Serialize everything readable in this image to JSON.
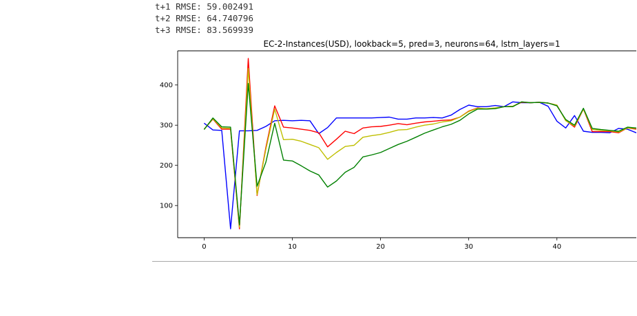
{
  "output_lines": [
    "t+1 RMSE: 59.002491",
    "t+2 RMSE: 64.740796",
    "t+3 RMSE: 83.569939"
  ],
  "chart_data": {
    "type": "line",
    "title": "EC-2-Instances(USD), lookback=5, pred=3, neurons=64, lstm_layers=1",
    "xlabel": "",
    "ylabel": "",
    "xlim": [
      -3,
      49
    ],
    "ylim": [
      20,
      485
    ],
    "xticks": [
      0,
      10,
      20,
      30,
      40
    ],
    "yticks": [
      100,
      200,
      300,
      400
    ],
    "grid": false,
    "legend": "none",
    "series": [
      {
        "color": "#0000ff",
        "x": [
          0,
          1,
          2,
          3,
          4,
          5,
          6,
          7,
          8,
          9,
          10,
          11,
          12,
          13,
          14,
          15,
          16,
          17,
          18,
          19,
          20,
          21,
          22,
          23,
          24,
          25,
          26,
          27,
          28,
          29,
          30,
          31,
          32,
          33,
          34,
          35,
          36,
          37,
          38,
          39,
          40,
          41,
          42,
          43,
          44,
          45,
          46,
          47,
          48,
          49
        ],
        "y": [
          305,
          288,
          287,
          42,
          286,
          286,
          287,
          297,
          311,
          312,
          311,
          312,
          311,
          279,
          294,
          318,
          318,
          318,
          318,
          318,
          319,
          320,
          315,
          315,
          318,
          318,
          319,
          318,
          325,
          339,
          350,
          346,
          346,
          349,
          346,
          358,
          356,
          356,
          357,
          347,
          310,
          293,
          324,
          285,
          282,
          282,
          281,
          292,
          290,
          281
        ]
      },
      {
        "color": "#ff0000",
        "x": [
          0,
          1,
          2,
          3,
          4,
          5,
          6,
          7,
          8,
          9,
          10,
          11,
          12,
          13,
          14,
          15,
          16,
          17,
          18,
          19,
          20,
          21,
          22,
          23,
          24,
          25,
          26,
          27,
          28,
          29,
          30,
          31,
          32,
          33,
          34,
          35,
          36,
          37,
          38,
          39,
          40,
          41,
          42,
          43,
          44,
          45,
          46,
          47,
          48,
          49
        ],
        "y": [
          290,
          315,
          290,
          290,
          42,
          466,
          125,
          245,
          348,
          295,
          293,
          290,
          287,
          281,
          246,
          265,
          285,
          279,
          293,
          296,
          297,
          300,
          304,
          301,
          305,
          308,
          310,
          312,
          313,
          320,
          335,
          343,
          340,
          342,
          346,
          347,
          357,
          356,
          357,
          355,
          350,
          312,
          295,
          340,
          284,
          284,
          284,
          281,
          293,
          290
        ]
      },
      {
        "color": "#bfbf00",
        "x": [
          0,
          1,
          2,
          3,
          4,
          5,
          6,
          7,
          8,
          9,
          10,
          11,
          12,
          13,
          14,
          15,
          16,
          17,
          18,
          19,
          20,
          21,
          22,
          23,
          24,
          25,
          26,
          27,
          28,
          29,
          30,
          31,
          32,
          33,
          34,
          35,
          36,
          37,
          38,
          39,
          40,
          41,
          42,
          43,
          44,
          45,
          46,
          47,
          48,
          49
        ],
        "y": [
          290,
          316,
          293,
          292,
          46,
          441,
          127,
          240,
          340,
          264,
          265,
          260,
          252,
          244,
          215,
          232,
          247,
          250,
          270,
          274,
          277,
          282,
          288,
          289,
          295,
          300,
          303,
          308,
          311,
          320,
          334,
          342,
          341,
          343,
          346,
          347,
          358,
          356,
          357,
          355,
          350,
          311,
          298,
          340,
          289,
          287,
          286,
          283,
          293,
          292
        ]
      },
      {
        "color": "#008000",
        "x": [
          0,
          1,
          2,
          3,
          4,
          5,
          6,
          7,
          8,
          9,
          10,
          11,
          12,
          13,
          14,
          15,
          16,
          17,
          18,
          19,
          20,
          21,
          22,
          23,
          24,
          25,
          26,
          27,
          28,
          29,
          30,
          31,
          32,
          33,
          34,
          35,
          36,
          37,
          38,
          39,
          40,
          41,
          42,
          43,
          44,
          45,
          46,
          47,
          48,
          49
        ],
        "y": [
          289,
          318,
          296,
          295,
          52,
          404,
          148,
          208,
          305,
          213,
          211,
          199,
          186,
          176,
          146,
          161,
          183,
          195,
          221,
          226,
          232,
          242,
          252,
          260,
          270,
          280,
          288,
          296,
          302,
          312,
          328,
          340,
          340,
          341,
          346,
          346,
          358,
          356,
          357,
          355,
          348,
          314,
          300,
          342,
          292,
          289,
          287,
          285,
          295,
          293
        ]
      }
    ]
  }
}
